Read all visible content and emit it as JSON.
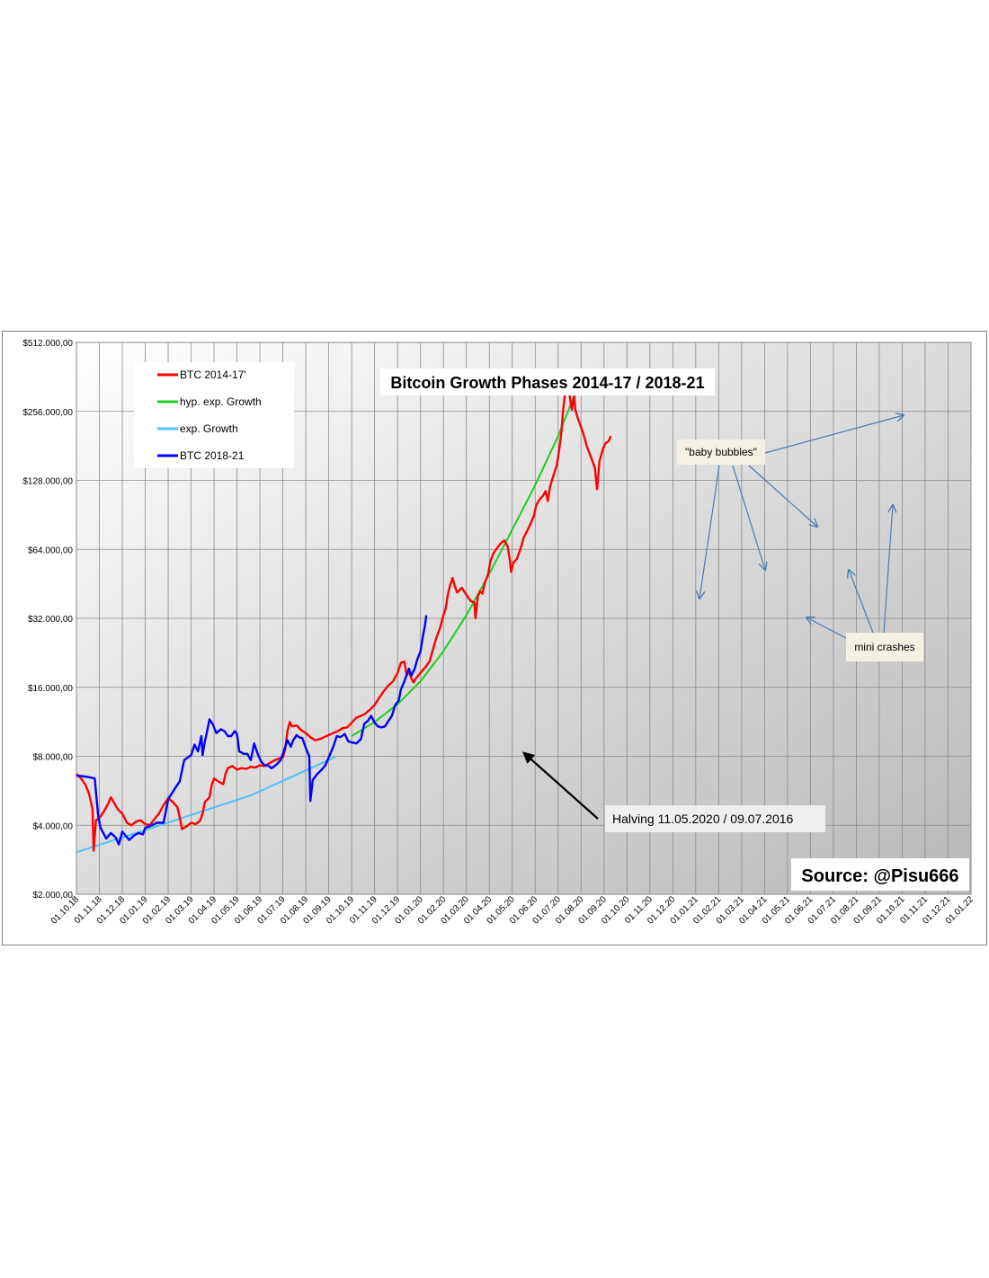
{
  "chart_data": {
    "type": "line",
    "title": "Bitcoin Growth Phases 2014-17 / 2018-21",
    "source": "Source: @Pisu666",
    "y_scale": "log2",
    "ylim": [
      2000,
      512000
    ],
    "y_ticks": [
      {
        "value": 2000,
        "label": "$2.000,00"
      },
      {
        "value": 4000,
        "label": "$4.000,00"
      },
      {
        "value": 8000,
        "label": "$8.000,00"
      },
      {
        "value": 16000,
        "label": "$16.000,00"
      },
      {
        "value": 32000,
        "label": "$32.000,00"
      },
      {
        "value": 64000,
        "label": "$64.000,00"
      },
      {
        "value": 128000,
        "label": "$128.000,00"
      },
      {
        "value": 256000,
        "label": "$256.000,00"
      },
      {
        "value": 512000,
        "label": "$512.000,00"
      }
    ],
    "x_ticks": [
      "01.10.18",
      "01.11.18",
      "01.12.18",
      "01.01.19",
      "01.02.19",
      "01.03.19",
      "01.04.19",
      "01.05.19",
      "01.06.19",
      "01.07.19",
      "01.08.19",
      "01.09.19",
      "01.10.19",
      "01.11.19",
      "01.12.19",
      "01.01.20",
      "01.02.20",
      "01.03.20",
      "01.04.20",
      "01.05.20",
      "01.06.20",
      "01.07.20",
      "01.08.20",
      "01.09.20",
      "01.10.20",
      "01.11.20",
      "01.12.20",
      "01.01.21",
      "01.02.21",
      "01.03.21",
      "01.04.21",
      "01.05.21",
      "01.06.21",
      "01.07.21",
      "01.08.21",
      "01.09.21",
      "01.10.21",
      "01.11.21",
      "01.12.21",
      "01.01.22"
    ],
    "grid": true,
    "legend_position": "top-left",
    "series": [
      {
        "name": "BTC 2014-17'",
        "color": "#ff0000",
        "points": [
          [
            0,
            6700
          ],
          [
            0.2,
            6400
          ],
          [
            0.4,
            6000
          ],
          [
            0.55,
            5500
          ],
          [
            0.7,
            4700
          ],
          [
            0.75,
            3100
          ],
          [
            0.85,
            4200
          ],
          [
            1.0,
            4300
          ],
          [
            1.2,
            4600
          ],
          [
            1.4,
            5000
          ],
          [
            1.5,
            5300
          ],
          [
            1.6,
            5100
          ],
          [
            1.8,
            4700
          ],
          [
            2.0,
            4500
          ],
          [
            2.2,
            4100
          ],
          [
            2.4,
            4000
          ],
          [
            2.6,
            4150
          ],
          [
            2.8,
            4200
          ],
          [
            3.0,
            4050
          ],
          [
            3.2,
            4000
          ],
          [
            3.4,
            4250
          ],
          [
            3.6,
            4500
          ],
          [
            3.8,
            4900
          ],
          [
            4.0,
            5250
          ],
          [
            4.2,
            5050
          ],
          [
            4.4,
            4800
          ],
          [
            4.5,
            4350
          ],
          [
            4.6,
            3850
          ],
          [
            4.8,
            3950
          ],
          [
            5.0,
            4100
          ],
          [
            5.2,
            4050
          ],
          [
            5.4,
            4200
          ],
          [
            5.5,
            4500
          ],
          [
            5.6,
            5050
          ],
          [
            5.8,
            5300
          ],
          [
            5.9,
            6000
          ],
          [
            6.0,
            6400
          ],
          [
            6.2,
            6200
          ],
          [
            6.4,
            6050
          ],
          [
            6.5,
            6700
          ],
          [
            6.6,
            7100
          ],
          [
            6.8,
            7250
          ],
          [
            7.0,
            7000
          ],
          [
            7.2,
            7100
          ],
          [
            7.4,
            7050
          ],
          [
            7.6,
            7200
          ],
          [
            7.8,
            7150
          ],
          [
            8.0,
            7300
          ],
          [
            8.2,
            7250
          ],
          [
            8.4,
            7450
          ],
          [
            8.6,
            7650
          ],
          [
            8.8,
            7800
          ],
          [
            9.0,
            7900
          ],
          [
            9.1,
            8600
          ],
          [
            9.2,
            10300
          ],
          [
            9.3,
            11300
          ],
          [
            9.4,
            10800
          ],
          [
            9.6,
            10900
          ],
          [
            9.8,
            10400
          ],
          [
            10.0,
            10100
          ],
          [
            10.2,
            9700
          ],
          [
            10.4,
            9400
          ],
          [
            10.6,
            9500
          ],
          [
            10.8,
            9700
          ],
          [
            11.0,
            9900
          ],
          [
            11.2,
            10100
          ],
          [
            11.4,
            10300
          ],
          [
            11.6,
            10600
          ],
          [
            11.8,
            10700
          ],
          [
            12.0,
            11200
          ],
          [
            12.2,
            11800
          ],
          [
            12.4,
            12000
          ],
          [
            12.6,
            12300
          ],
          [
            12.8,
            12800
          ],
          [
            13.0,
            13400
          ],
          [
            13.2,
            14400
          ],
          [
            13.4,
            15400
          ],
          [
            13.6,
            16300
          ],
          [
            13.8,
            17000
          ],
          [
            14.0,
            18500
          ],
          [
            14.15,
            20500
          ],
          [
            14.3,
            20700
          ],
          [
            14.4,
            18000
          ],
          [
            14.5,
            18800
          ],
          [
            14.6,
            17500
          ],
          [
            14.7,
            16800
          ],
          [
            14.8,
            17500
          ],
          [
            15.0,
            18500
          ],
          [
            15.2,
            19500
          ],
          [
            15.4,
            20800
          ],
          [
            15.55,
            23500
          ],
          [
            15.7,
            26500
          ],
          [
            15.85,
            29000
          ],
          [
            16.0,
            33000
          ],
          [
            16.1,
            35500
          ],
          [
            16.2,
            41000
          ],
          [
            16.3,
            45000
          ],
          [
            16.4,
            48000
          ],
          [
            16.5,
            44000
          ],
          [
            16.6,
            41500
          ],
          [
            16.8,
            43500
          ],
          [
            17.0,
            40500
          ],
          [
            17.2,
            38000
          ],
          [
            17.35,
            37500
          ],
          [
            17.4,
            32000
          ],
          [
            17.5,
            40000
          ],
          [
            17.6,
            42000
          ],
          [
            17.7,
            41000
          ],
          [
            17.8,
            45500
          ],
          [
            17.95,
            50000
          ],
          [
            18.05,
            57000
          ],
          [
            18.2,
            62000
          ],
          [
            18.4,
            66000
          ],
          [
            18.5,
            68000
          ],
          [
            18.65,
            70000
          ],
          [
            18.8,
            66000
          ],
          [
            18.9,
            57000
          ],
          [
            18.95,
            51000
          ],
          [
            19.05,
            56000
          ],
          [
            19.2,
            58000
          ],
          [
            19.35,
            64000
          ],
          [
            19.5,
            72000
          ],
          [
            19.65,
            77000
          ],
          [
            19.8,
            83000
          ],
          [
            19.95,
            90000
          ],
          [
            20.05,
            100000
          ],
          [
            20.2,
            106000
          ],
          [
            20.35,
            110000
          ],
          [
            20.45,
            115000
          ],
          [
            20.55,
            104000
          ],
          [
            20.65,
            120000
          ],
          [
            20.8,
            135000
          ],
          [
            20.95,
            150000
          ],
          [
            21.05,
            175000
          ],
          [
            21.15,
            210000
          ],
          [
            21.2,
            250000
          ],
          [
            21.3,
            305000
          ],
          [
            21.4,
            330000
          ],
          [
            21.5,
            300000
          ],
          [
            21.6,
            260000
          ],
          [
            21.7,
            300000
          ],
          [
            21.75,
            260000
          ],
          [
            21.85,
            240000
          ],
          [
            21.95,
            225000
          ],
          [
            22.1,
            205000
          ],
          [
            22.25,
            180000
          ],
          [
            22.45,
            160000
          ],
          [
            22.6,
            145000
          ],
          [
            22.7,
            117000
          ],
          [
            22.8,
            155000
          ],
          [
            22.95,
            175000
          ],
          [
            23.05,
            185000
          ],
          [
            23.2,
            190000
          ],
          [
            23.3,
            200000
          ]
        ]
      },
      {
        "name": "hyp. exp. Growth",
        "color": "#22cc22",
        "points": [
          [
            12.0,
            9800
          ],
          [
            13.0,
            11300
          ],
          [
            14.0,
            13500
          ],
          [
            15.0,
            17000
          ],
          [
            16.0,
            23000
          ],
          [
            17.0,
            33000
          ],
          [
            18.0,
            50000
          ],
          [
            19.0,
            78000
          ],
          [
            20.0,
            122000
          ],
          [
            21.0,
            200000
          ],
          [
            21.7,
            300000
          ],
          [
            22.2,
            360000
          ]
        ]
      },
      {
        "name": "exp. Growth",
        "color": "#4fc3f7",
        "points": [
          [
            0,
            3050
          ],
          [
            3.8,
            4050
          ],
          [
            7.6,
            5400
          ],
          [
            11.3,
            7950
          ]
        ]
      },
      {
        "name": "BTC 2018-21",
        "color": "#0000ff",
        "points": [
          [
            0,
            6600
          ],
          [
            0.5,
            6500
          ],
          [
            0.8,
            6400
          ],
          [
            0.85,
            5600
          ],
          [
            0.95,
            4400
          ],
          [
            1.05,
            3900
          ],
          [
            1.3,
            3500
          ],
          [
            1.5,
            3700
          ],
          [
            1.7,
            3550
          ],
          [
            1.85,
            3300
          ],
          [
            2.0,
            3750
          ],
          [
            2.3,
            3450
          ],
          [
            2.5,
            3600
          ],
          [
            2.7,
            3700
          ],
          [
            2.9,
            3650
          ],
          [
            3.0,
            3900
          ],
          [
            3.3,
            4000
          ],
          [
            3.5,
            4100
          ],
          [
            3.8,
            4100
          ],
          [
            4.0,
            5200
          ],
          [
            4.3,
            5800
          ],
          [
            4.5,
            6200
          ],
          [
            4.7,
            7700
          ],
          [
            5.0,
            8100
          ],
          [
            5.15,
            9000
          ],
          [
            5.3,
            8400
          ],
          [
            5.45,
            9800
          ],
          [
            5.5,
            8100
          ],
          [
            5.6,
            9300
          ],
          [
            5.7,
            10300
          ],
          [
            5.8,
            11600
          ],
          [
            5.95,
            11000
          ],
          [
            6.1,
            10100
          ],
          [
            6.3,
            10500
          ],
          [
            6.45,
            10300
          ],
          [
            6.6,
            9800
          ],
          [
            6.75,
            9800
          ],
          [
            6.9,
            10300
          ],
          [
            7.0,
            10000
          ],
          [
            7.1,
            8400
          ],
          [
            7.3,
            8200
          ],
          [
            7.45,
            8200
          ],
          [
            7.6,
            7700
          ],
          [
            7.75,
            9100
          ],
          [
            7.9,
            8200
          ],
          [
            8.05,
            7600
          ],
          [
            8.2,
            7300
          ],
          [
            8.35,
            7300
          ],
          [
            8.5,
            7100
          ],
          [
            8.6,
            7200
          ],
          [
            8.75,
            7400
          ],
          [
            8.9,
            7700
          ],
          [
            9.0,
            8200
          ],
          [
            9.2,
            9400
          ],
          [
            9.35,
            8800
          ],
          [
            9.45,
            9400
          ],
          [
            9.6,
            9900
          ],
          [
            9.7,
            9700
          ],
          [
            9.85,
            9600
          ],
          [
            10.0,
            8700
          ],
          [
            10.15,
            8000
          ],
          [
            10.2,
            5100
          ],
          [
            10.3,
            6300
          ],
          [
            10.5,
            6700
          ],
          [
            10.7,
            7000
          ],
          [
            10.85,
            7300
          ],
          [
            11.0,
            7900
          ],
          [
            11.2,
            8800
          ],
          [
            11.35,
            9800
          ],
          [
            11.5,
            9700
          ],
          [
            11.7,
            10000
          ],
          [
            11.85,
            9300
          ],
          [
            12.0,
            9200
          ],
          [
            12.2,
            9100
          ],
          [
            12.4,
            9500
          ],
          [
            12.55,
            11100
          ],
          [
            12.7,
            11400
          ],
          [
            12.85,
            12000
          ],
          [
            13.0,
            11200
          ],
          [
            13.15,
            10800
          ],
          [
            13.3,
            10700
          ],
          [
            13.45,
            10800
          ],
          [
            13.6,
            11400
          ],
          [
            13.75,
            12000
          ],
          [
            13.9,
            13400
          ],
          [
            14.05,
            14000
          ],
          [
            14.15,
            15700
          ],
          [
            14.3,
            17000
          ],
          [
            14.4,
            18200
          ],
          [
            14.5,
            19300
          ],
          [
            14.6,
            18000
          ],
          [
            14.75,
            19300
          ],
          [
            14.85,
            21000
          ],
          [
            15.0,
            23000
          ],
          [
            15.1,
            26500
          ],
          [
            15.2,
            30000
          ],
          [
            15.25,
            33000
          ]
        ]
      }
    ],
    "annotations": {
      "baby_bubbles": "\"baby bubbles\"",
      "mini_crashes": "mini crashes",
      "halving": "Halving 11.05.2020  /  09.07.2016"
    }
  },
  "colors": {
    "plot_bg_light": "#ffffff",
    "plot_bg_dark": "#b8b8b8",
    "gridline": "#8c8c8c",
    "annotation_arrow": "#4a7ab5",
    "halving_arrow": "#000000",
    "annotation_box": "#f4f1e4"
  }
}
